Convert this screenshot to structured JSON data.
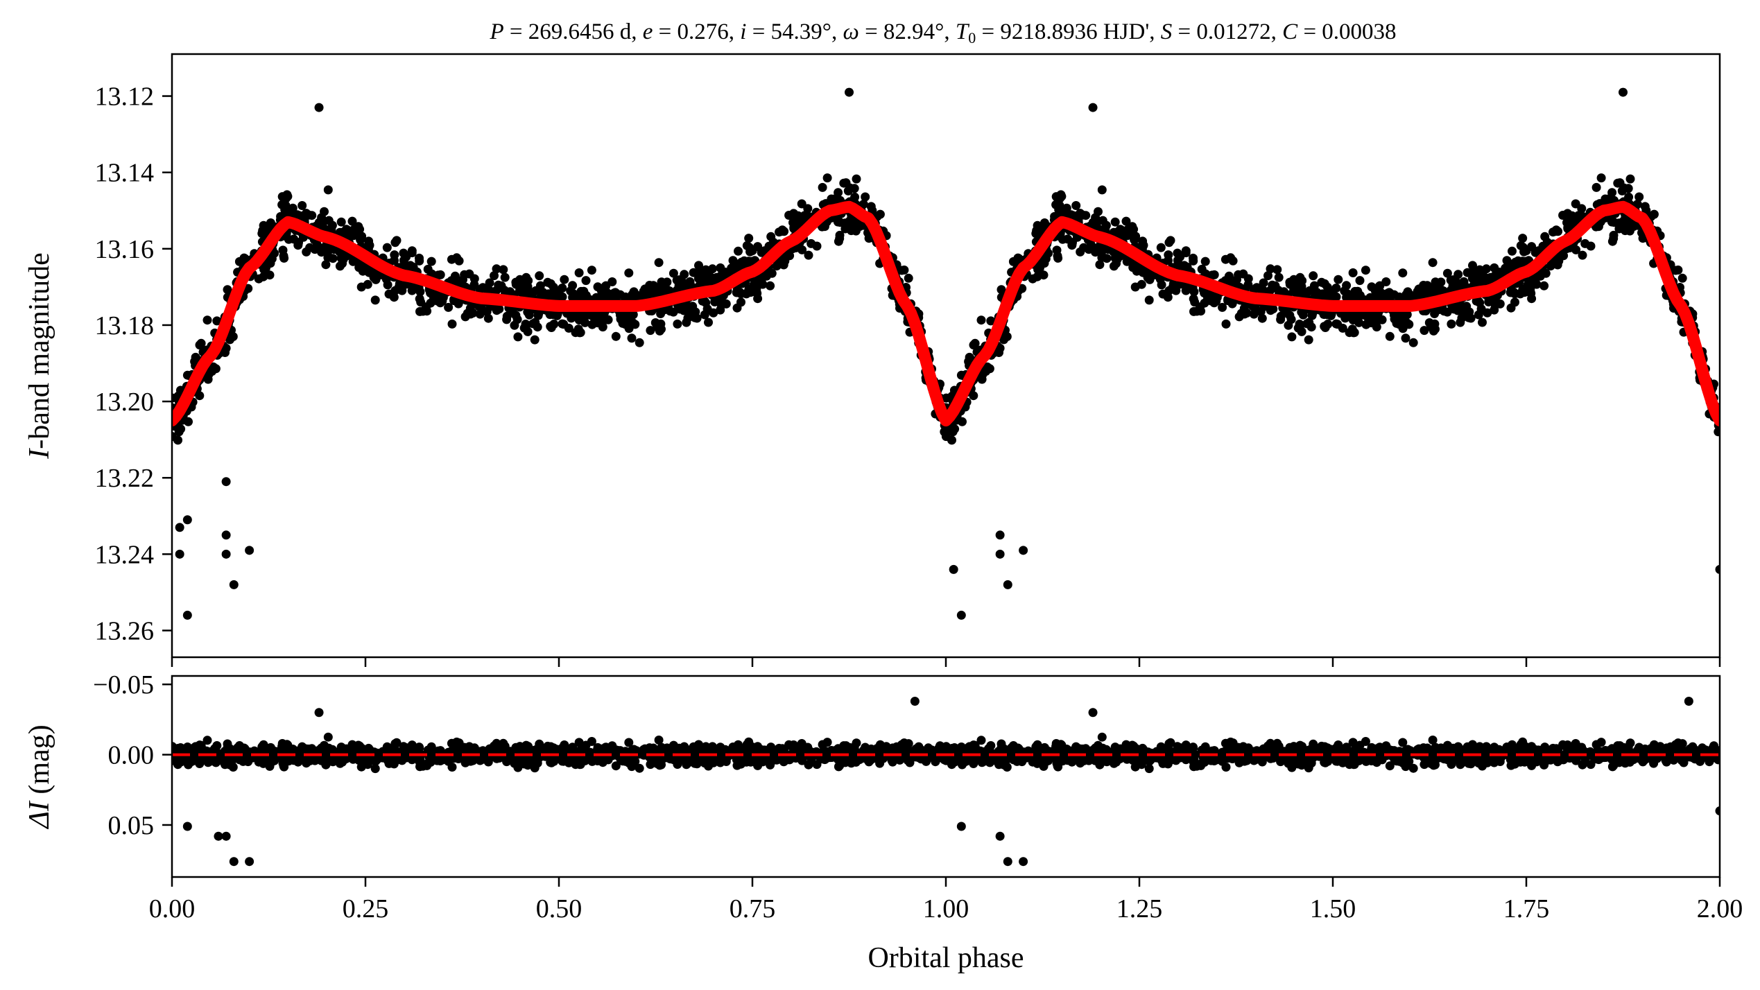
{
  "chart_data": [
    {
      "type": "scatter",
      "title": "P = 269.6456 d, e = 0.276, i = 54.39°, ω = 82.94°, T₀ = 9218.8936 HJD', S = 0.01272, C = 0.00038",
      "title_parts": {
        "p_sym": "P",
        "p_val": " = 269.6456 d, ",
        "e_sym": "e",
        "e_val": " = 0.276, ",
        "i_sym": "i",
        "i_val": " = 54.39°, ",
        "w_sym": "ω",
        "w_val": " = 82.94°, ",
        "t_sym": "T",
        "t_sub": "0",
        "t_val": " = 9218.8936 HJD', ",
        "s_sym": "S",
        "s_val": " = 0.01272, ",
        "c_sym": "C",
        "c_val": " = 0.00038"
      },
      "xlabel": "",
      "ylabel_italic": "I",
      "ylabel_rest": "-band magnitude",
      "ylabel": "I-band magnitude",
      "xlim": [
        0.0,
        2.0
      ],
      "ylim": [
        13.109,
        13.267
      ],
      "y_inverted": true,
      "yticks": [
        "13.12",
        "13.14",
        "13.16",
        "13.18",
        "13.20",
        "13.22",
        "13.24",
        "13.26"
      ],
      "ytick_values": [
        13.12,
        13.14,
        13.16,
        13.18,
        13.2,
        13.22,
        13.24,
        13.26
      ],
      "grid": false,
      "series": [
        {
          "kind": "observations",
          "color": "#000000",
          "note_repeat": "phase 0-1 repeated at 1-2",
          "shape_phase": [
            0.0,
            0.05,
            0.1,
            0.15,
            0.2,
            0.3,
            0.4,
            0.5,
            0.6,
            0.7,
            0.75,
            0.8,
            0.85,
            0.875,
            0.9,
            0.95,
            1.0
          ],
          "shape_mag": [
            13.205,
            13.188,
            13.165,
            13.153,
            13.157,
            13.167,
            13.173,
            13.175,
            13.175,
            13.171,
            13.166,
            13.158,
            13.15,
            13.149,
            13.152,
            13.175,
            13.205
          ],
          "scatter_sd": 0.009,
          "outliers": [
            {
              "x": 0.01,
              "y": 13.233
            },
            {
              "x": 0.01,
              "y": 13.24
            },
            {
              "x": 0.02,
              "y": 13.231
            },
            {
              "x": 0.02,
              "y": 13.256
            },
            {
              "x": 0.07,
              "y": 13.235
            },
            {
              "x": 0.07,
              "y": 13.24
            },
            {
              "x": 0.08,
              "y": 13.248
            },
            {
              "x": 0.1,
              "y": 13.239
            },
            {
              "x": 0.07,
              "y": 13.221
            },
            {
              "x": 0.19,
              "y": 13.123
            },
            {
              "x": 0.875,
              "y": 13.119
            },
            {
              "x": 1.01,
              "y": 13.244
            },
            {
              "x": 1.02,
              "y": 13.256
            },
            {
              "x": 1.07,
              "y": 13.235
            },
            {
              "x": 1.07,
              "y": 13.24
            },
            {
              "x": 1.08,
              "y": 13.248
            },
            {
              "x": 1.1,
              "y": 13.239
            },
            {
              "x": 1.19,
              "y": 13.123
            },
            {
              "x": 1.875,
              "y": 13.119
            },
            {
              "x": 2.0,
              "y": 13.244
            }
          ]
        },
        {
          "kind": "model",
          "color": "#ff0000",
          "phase": [
            0.0,
            0.05,
            0.1,
            0.15,
            0.2,
            0.3,
            0.4,
            0.5,
            0.55,
            0.6,
            0.7,
            0.75,
            0.8,
            0.85,
            0.875,
            0.9,
            0.95,
            1.0,
            1.05,
            1.1,
            1.15,
            1.2,
            1.3,
            1.4,
            1.5,
            1.55,
            1.6,
            1.7,
            1.75,
            1.8,
            1.85,
            1.875,
            1.9,
            1.95,
            2.0
          ],
          "mag": [
            13.205,
            13.188,
            13.165,
            13.153,
            13.157,
            13.167,
            13.173,
            13.1755,
            13.176,
            13.1755,
            13.171,
            13.166,
            13.158,
            13.15,
            13.149,
            13.152,
            13.175,
            13.205,
            13.188,
            13.165,
            13.153,
            13.157,
            13.167,
            13.173,
            13.1755,
            13.176,
            13.1755,
            13.171,
            13.166,
            13.158,
            13.15,
            13.149,
            13.152,
            13.175,
            13.205
          ]
        }
      ]
    },
    {
      "type": "scatter",
      "title": "",
      "xlabel": "Orbital phase",
      "ylabel_sym": "ΔI",
      "ylabel_rest": " (mag)",
      "ylabel": "ΔI (mag)",
      "xlim": [
        0.0,
        2.0
      ],
      "ylim": [
        -0.056,
        0.087
      ],
      "y_inverted": true,
      "xticks": [
        "0.00",
        "0.25",
        "0.50",
        "0.75",
        "1.00",
        "1.25",
        "1.50",
        "1.75",
        "2.00"
      ],
      "xtick_values": [
        0.0,
        0.25,
        0.5,
        0.75,
        1.0,
        1.25,
        1.5,
        1.75,
        2.0
      ],
      "yticks": [
        "−0.05",
        "0.00",
        "0.05"
      ],
      "ytick_values": [
        -0.05,
        0.0,
        0.05
      ],
      "grid": false,
      "series": [
        {
          "kind": "residuals",
          "color": "#000000",
          "scatter_sd": 0.009,
          "outliers": [
            {
              "x": 0.02,
              "y": 0.051
            },
            {
              "x": 0.07,
              "y": 0.058
            },
            {
              "x": 0.08,
              "y": 0.076
            },
            {
              "x": 0.1,
              "y": 0.076
            },
            {
              "x": 0.06,
              "y": 0.058
            },
            {
              "x": 0.19,
              "y": -0.03
            },
            {
              "x": 0.96,
              "y": -0.038
            },
            {
              "x": 1.02,
              "y": 0.051
            },
            {
              "x": 1.07,
              "y": 0.058
            },
            {
              "x": 1.08,
              "y": 0.076
            },
            {
              "x": 1.1,
              "y": 0.076
            },
            {
              "x": 1.19,
              "y": -0.03
            },
            {
              "x": 1.96,
              "y": -0.038
            },
            {
              "x": 2.0,
              "y": 0.04
            }
          ]
        },
        {
          "kind": "zero-line",
          "color": "#ff0000",
          "style": "dashed",
          "y": 0.0
        }
      ]
    }
  ]
}
